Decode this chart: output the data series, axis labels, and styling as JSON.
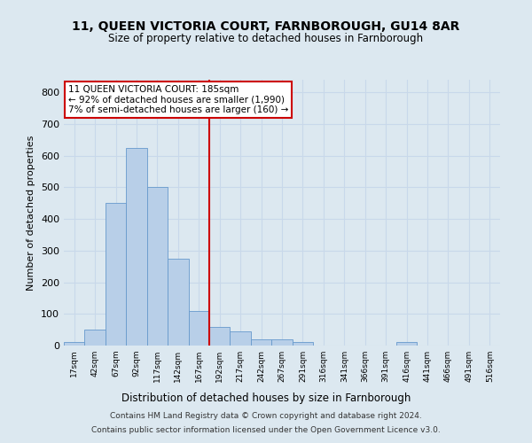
{
  "title_line1": "11, QUEEN VICTORIA COURT, FARNBOROUGH, GU14 8AR",
  "title_line2": "Size of property relative to detached houses in Farnborough",
  "xlabel": "Distribution of detached houses by size in Farnborough",
  "ylabel": "Number of detached properties",
  "footnote1": "Contains HM Land Registry data © Crown copyright and database right 2024.",
  "footnote2": "Contains public sector information licensed under the Open Government Licence v3.0.",
  "bar_color": "#b8cfe8",
  "bar_edge_color": "#6699cc",
  "grid_color": "#c8d8ea",
  "background_color": "#dce8f0",
  "vline_color": "#cc0000",
  "vline_x": 6.5,
  "bin_labels": [
    "17sqm",
    "42sqm",
    "67sqm",
    "92sqm",
    "117sqm",
    "142sqm",
    "167sqm",
    "192sqm",
    "217sqm",
    "242sqm",
    "267sqm",
    "291sqm",
    "316sqm",
    "341sqm",
    "366sqm",
    "391sqm",
    "416sqm",
    "441sqm",
    "466sqm",
    "491sqm",
    "516sqm"
  ],
  "bar_heights": [
    10,
    50,
    450,
    625,
    500,
    275,
    110,
    60,
    45,
    20,
    20,
    10,
    0,
    0,
    0,
    0,
    10,
    0,
    0,
    0,
    0
  ],
  "ylim": [
    0,
    840
  ],
  "yticks": [
    0,
    100,
    200,
    300,
    400,
    500,
    600,
    700,
    800
  ],
  "annotation_text": "11 QUEEN VICTORIA COURT: 185sqm\n← 92% of detached houses are smaller (1,990)\n7% of semi-detached houses are larger (160) →",
  "annotation_box_color": "#ffffff",
  "annotation_box_edge": "#cc0000"
}
